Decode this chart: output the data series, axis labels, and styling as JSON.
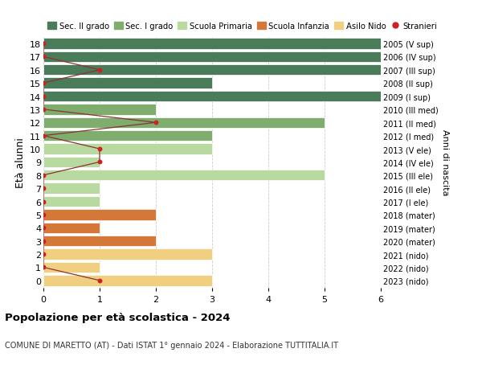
{
  "ages": [
    18,
    17,
    16,
    15,
    14,
    13,
    12,
    11,
    10,
    9,
    8,
    7,
    6,
    5,
    4,
    3,
    2,
    1,
    0
  ],
  "right_labels": [
    "2005 (V sup)",
    "2006 (IV sup)",
    "2007 (III sup)",
    "2008 (II sup)",
    "2009 (I sup)",
    "2010 (III med)",
    "2011 (II med)",
    "2012 (I med)",
    "2013 (V ele)",
    "2014 (IV ele)",
    "2015 (III ele)",
    "2016 (II ele)",
    "2017 (I ele)",
    "2018 (mater)",
    "2019 (mater)",
    "2020 (mater)",
    "2021 (nido)",
    "2022 (nido)",
    "2023 (nido)"
  ],
  "bar_values": [
    6,
    6,
    6,
    3,
    6,
    2,
    5,
    3,
    3,
    1,
    5,
    1,
    1,
    2,
    1,
    2,
    3,
    1,
    3
  ],
  "bar_colors": [
    "#4a7c59",
    "#4a7c59",
    "#4a7c59",
    "#4a7c59",
    "#4a7c59",
    "#7fad6e",
    "#7fad6e",
    "#7fad6e",
    "#b8d9a0",
    "#b8d9a0",
    "#b8d9a0",
    "#b8d9a0",
    "#b8d9a0",
    "#d4783a",
    "#d4783a",
    "#d4783a",
    "#f0d080",
    "#f0d080",
    "#f0d080"
  ],
  "stranieri_x": [
    0,
    0,
    1,
    0,
    0,
    0,
    2,
    0,
    1,
    1,
    0,
    0,
    0,
    0,
    0,
    0,
    0,
    0,
    1
  ],
  "xlim": [
    0,
    6
  ],
  "ylabel_left": "Età alunni",
  "ylabel_right": "Anni di nascita",
  "title": "Popolazione per età scolastica - 2024",
  "subtitle": "COMUNE DI MARETTO (AT) - Dati ISTAT 1° gennaio 2024 - Elaborazione TUTTITALIA.IT",
  "legend_labels": [
    "Sec. II grado",
    "Sec. I grado",
    "Scuola Primaria",
    "Scuola Infanzia",
    "Asilo Nido",
    "Stranieri"
  ],
  "legend_colors": [
    "#4a7c59",
    "#7fad6e",
    "#b8d9a0",
    "#d4783a",
    "#f0d080",
    "#cc2222"
  ],
  "bar_height": 0.82,
  "stranieri_color": "#cc2222",
  "stranieri_line_color": "#8b3333",
  "grid_color": "#cccccc",
  "bg_color": "#ffffff"
}
